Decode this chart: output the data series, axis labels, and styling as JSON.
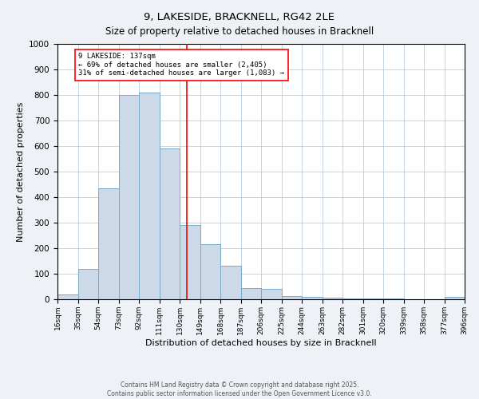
{
  "title": "9, LAKESIDE, BRACKNELL, RG42 2LE",
  "subtitle": "Size of property relative to detached houses in Bracknell",
  "xlabel": "Distribution of detached houses by size in Bracknell",
  "ylabel": "Number of detached properties",
  "bin_labels": [
    "16sqm",
    "35sqm",
    "54sqm",
    "73sqm",
    "92sqm",
    "111sqm",
    "130sqm",
    "149sqm",
    "168sqm",
    "187sqm",
    "206sqm",
    "225sqm",
    "244sqm",
    "263sqm",
    "282sqm",
    "301sqm",
    "320sqm",
    "339sqm",
    "358sqm",
    "377sqm",
    "396sqm"
  ],
  "bin_edges": [
    16,
    35,
    54,
    73,
    92,
    111,
    130,
    149,
    168,
    187,
    206,
    225,
    244,
    263,
    282,
    301,
    320,
    339,
    358,
    377,
    396
  ],
  "values": [
    20,
    120,
    435,
    800,
    810,
    590,
    290,
    215,
    130,
    45,
    40,
    13,
    9,
    6,
    4,
    3,
    2,
    1,
    0,
    8
  ],
  "bar_color": "#ccd9e8",
  "bar_edge_color": "#7aaac8",
  "vline_x": 137,
  "vline_color": "red",
  "annotation_title": "9 LAKESIDE: 137sqm",
  "annotation_line1": "← 69% of detached houses are smaller (2,405)",
  "annotation_line2": "31% of semi-detached houses are larger (1,083) →",
  "annotation_box_color": "white",
  "annotation_box_edge": "red",
  "ylim": [
    0,
    1000
  ],
  "yticks": [
    0,
    100,
    200,
    300,
    400,
    500,
    600,
    700,
    800,
    900,
    1000
  ],
  "footer1": "Contains HM Land Registry data © Crown copyright and database right 2025.",
  "footer2": "Contains public sector information licensed under the Open Government Licence v3.0.",
  "bg_color": "#eef2f7",
  "plot_bg_color": "#ffffff",
  "figwidth": 6.0,
  "figheight": 5.0,
  "dpi": 100
}
